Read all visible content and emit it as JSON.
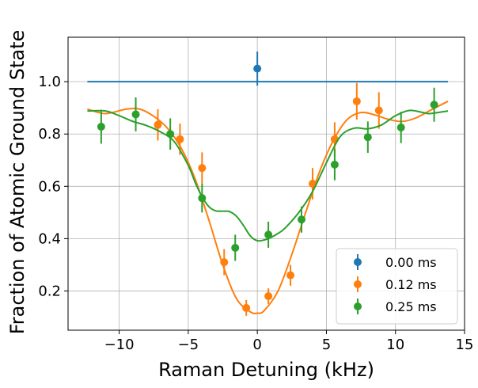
{
  "chart_data": {
    "type": "scatter",
    "title": "",
    "xlabel": "Raman Detuning (kHz)",
    "ylabel": "Fraction of Atomic Ground State",
    "xlim": [
      -13.7,
      15.0
    ],
    "ylim": [
      0.05,
      1.17
    ],
    "xticks": [
      -10,
      -5,
      0,
      5,
      10,
      15
    ],
    "xtick_labels": [
      "−10",
      "−5",
      "0",
      "5",
      "10",
      "15"
    ],
    "yticks": [
      0.2,
      0.4,
      0.6,
      0.8,
      1.0
    ],
    "ytick_labels": [
      "0.2",
      "0.4",
      "0.6",
      "0.8",
      "1.0"
    ],
    "grid": true,
    "legend_position": "lower-right",
    "series": [
      {
        "name": "0.00 ms",
        "color": "#1f77b4",
        "points": [
          {
            "x": 0.0,
            "y": 1.05,
            "err": 0.065
          }
        ],
        "fit": {
          "x": [
            -12.3,
            13.8
          ],
          "y": [
            1.0,
            1.0
          ]
        }
      },
      {
        "name": "0.12 ms",
        "color": "#ff7f0e",
        "points": [
          {
            "x": -7.2,
            "y": 0.835,
            "err": 0.06
          },
          {
            "x": -5.6,
            "y": 0.78,
            "err": 0.06
          },
          {
            "x": -4.0,
            "y": 0.67,
            "err": 0.06
          },
          {
            "x": -2.4,
            "y": 0.31,
            "err": 0.05
          },
          {
            "x": -0.8,
            "y": 0.135,
            "err": 0.03
          },
          {
            "x": 0.8,
            "y": 0.18,
            "err": 0.03
          },
          {
            "x": 2.4,
            "y": 0.26,
            "err": 0.04
          },
          {
            "x": 4.0,
            "y": 0.61,
            "err": 0.06
          },
          {
            "x": 5.6,
            "y": 0.78,
            "err": 0.065
          },
          {
            "x": 7.2,
            "y": 0.925,
            "err": 0.07
          },
          {
            "x": 8.8,
            "y": 0.89,
            "err": 0.07
          }
        ],
        "fit": {
          "x": [
            -12.3,
            -11.0,
            -9.5,
            -8.5,
            -7.5,
            -6.5,
            -5.5,
            -4.5,
            -3.5,
            -2.5,
            -1.5,
            -0.5,
            0.0,
            0.5,
            1.5,
            2.5,
            3.5,
            4.5,
            5.5,
            6.5,
            7.5,
            8.5,
            9.5,
            10.5,
            11.5,
            12.5,
            13.8
          ],
          "y": [
            0.895,
            0.878,
            0.895,
            0.895,
            0.868,
            0.822,
            0.745,
            0.628,
            0.47,
            0.3,
            0.17,
            0.12,
            0.115,
            0.125,
            0.2,
            0.34,
            0.5,
            0.655,
            0.775,
            0.855,
            0.882,
            0.873,
            0.856,
            0.848,
            0.862,
            0.89,
            0.925
          ]
        }
      },
      {
        "name": "0.25 ms",
        "color": "#2ca02c",
        "points": [
          {
            "x": -11.3,
            "y": 0.828,
            "err": 0.065
          },
          {
            "x": -8.8,
            "y": 0.875,
            "err": 0.065
          },
          {
            "x": -6.3,
            "y": 0.8,
            "err": 0.06
          },
          {
            "x": -4.0,
            "y": 0.555,
            "err": 0.055
          },
          {
            "x": -1.6,
            "y": 0.365,
            "err": 0.05
          },
          {
            "x": 0.8,
            "y": 0.415,
            "err": 0.05
          },
          {
            "x": 3.2,
            "y": 0.473,
            "err": 0.05
          },
          {
            "x": 5.6,
            "y": 0.683,
            "err": 0.06
          },
          {
            "x": 8.0,
            "y": 0.788,
            "err": 0.06
          },
          {
            "x": 10.4,
            "y": 0.825,
            "err": 0.06
          },
          {
            "x": 12.8,
            "y": 0.912,
            "err": 0.065
          }
        ],
        "fit": {
          "x": [
            -12.3,
            -11.0,
            -10.0,
            -9.0,
            -8.0,
            -7.0,
            -6.0,
            -5.0,
            -4.5,
            -4.0,
            -3.5,
            -3.0,
            -2.5,
            -2.0,
            -1.5,
            -1.0,
            -0.5,
            0.0,
            0.5,
            1.0,
            1.5,
            2.0,
            3.0,
            4.0,
            5.0,
            6.0,
            7.0,
            8.0,
            9.0,
            10.0,
            11.0,
            12.0,
            12.5,
            13.8
          ],
          "y": [
            0.888,
            0.888,
            0.87,
            0.848,
            0.832,
            0.808,
            0.77,
            0.68,
            0.615,
            0.56,
            0.522,
            0.506,
            0.505,
            0.503,
            0.485,
            0.45,
            0.41,
            0.392,
            0.395,
            0.405,
            0.42,
            0.44,
            0.5,
            0.58,
            0.69,
            0.79,
            0.822,
            0.82,
            0.835,
            0.87,
            0.89,
            0.882,
            0.878,
            0.888
          ]
        }
      }
    ]
  }
}
